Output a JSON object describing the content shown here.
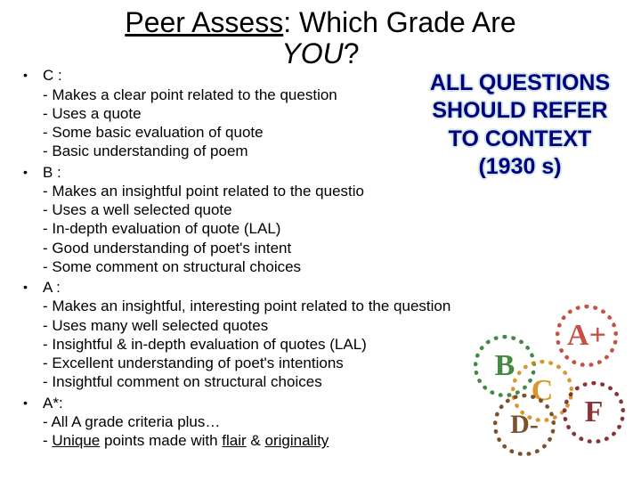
{
  "title": {
    "line1": "Peer Assess",
    "line1_after": ": Which Grade Are",
    "line2_italic": "YOU",
    "line2_after": "?"
  },
  "callout": {
    "line1": "ALL QUESTIONS",
    "line2": "SHOULD REFER",
    "line3": "TO CONTEXT",
    "line4": "(1930 s)"
  },
  "grades": [
    {
      "label": "C :",
      "criteria": [
        "Makes a clear point related to the question",
        "Uses a quote",
        "Some basic evaluation of quote",
        "Basic understanding of poem"
      ]
    },
    {
      "label": "B :",
      "criteria": [
        "Makes an insightful point related to the questio",
        "Uses a well selected quote",
        "In-depth evaluation of quote (LAL)",
        "Good understanding of poet's intent",
        "Some comment on structural choices"
      ]
    },
    {
      "label": "A :",
      "criteria": [
        "Makes an insightful, interesting point related to the question",
        "Uses many well selected quotes",
        "Insightful & in-depth evaluation of quotes (LAL)",
        "Excellent understanding of poet's intentions",
        "Insightful comment on structural choices"
      ]
    },
    {
      "label": "A*:",
      "criteria_special": {
        "line1": "All A grade criteria plus…",
        "line2_pre": "",
        "line2_u1": "Unique",
        "line2_mid": " points made with ",
        "line2_u2": "flair",
        "line2_amp": " & ",
        "line2_u3": "originality"
      }
    }
  ],
  "stamps": {
    "a": "A+",
    "b": "B",
    "c": "C",
    "d": "D-",
    "f": "F"
  },
  "colors": {
    "text": "#000000",
    "callout_text": "#000080",
    "callout_glow": "#d5e8e8",
    "stamp_a": "#c0392b",
    "stamp_b": "#2a7a2a",
    "stamp_c": "#d68910",
    "stamp_d": "#6b3a10",
    "stamp_f": "#7b1818",
    "background": "#ffffff"
  }
}
